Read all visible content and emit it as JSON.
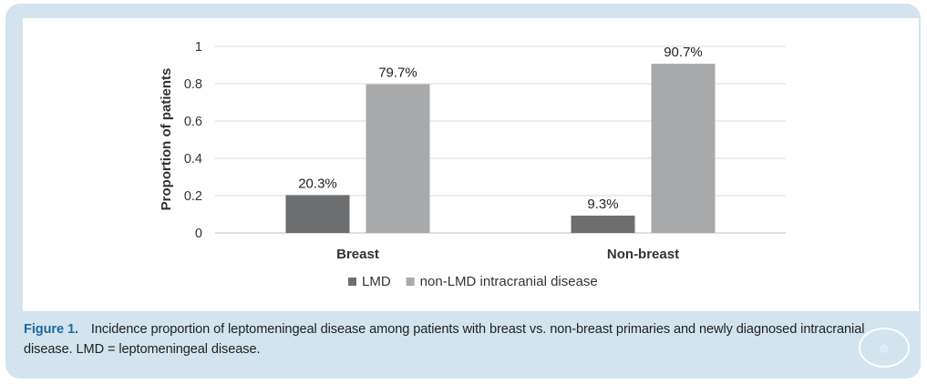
{
  "chart_data": {
    "type": "bar",
    "categories": [
      "Breast",
      "Non-breast"
    ],
    "series": [
      {
        "name": "LMD",
        "values": [
          0.203,
          0.093
        ],
        "labels": [
          "20.3%",
          "9.3%"
        ],
        "color": "#6d6e70"
      },
      {
        "name": "non-LMD intracranial disease",
        "values": [
          0.797,
          0.907
        ],
        "labels": [
          "79.7%",
          "90.7%"
        ],
        "color": "#a7a9ab"
      }
    ],
    "ylabel": "Proportion of patients",
    "xlabel": "",
    "ylim": [
      0,
      1
    ],
    "yticks": [
      0,
      0.2,
      0.4,
      0.6,
      0.8,
      1
    ],
    "ytick_labels": [
      "0",
      "0.2",
      "0.4",
      "0.6",
      "0.8",
      "1"
    ],
    "grid": true,
    "legend": "bottom-center"
  },
  "caption": {
    "label": "Figure 1.",
    "text": "Incidence proportion of leptomeningeal disease among patients with breast vs. non-breast primaries and newly diagnosed intracranial disease. LMD = leptomeningeal disease."
  },
  "colors": {
    "panel_bg": "#d3e4ee",
    "caption_label": "#1f6aa0",
    "grid": "#d9d9d9"
  }
}
